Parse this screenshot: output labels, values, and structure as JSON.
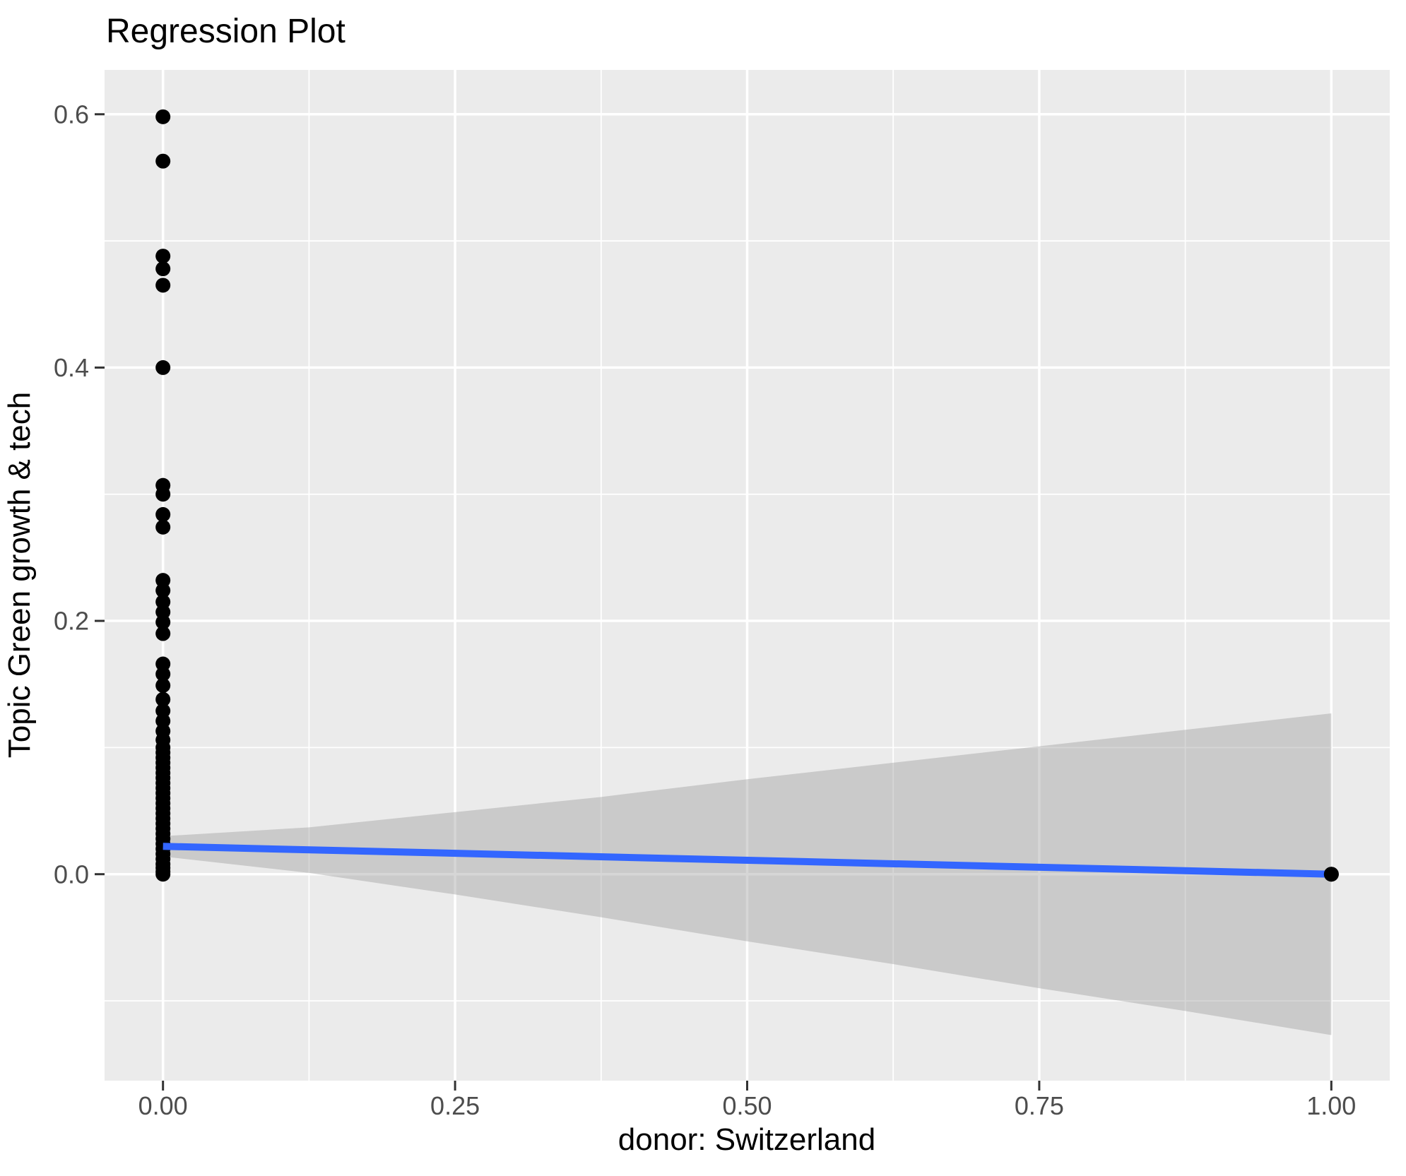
{
  "title": "Regression Plot",
  "axes": {
    "x": {
      "label": "donor: Switzerland",
      "tick_labels": [
        "0.00",
        "0.25",
        "0.50",
        "0.75",
        "1.00"
      ],
      "tick_values": [
        0,
        0.25,
        0.5,
        0.75,
        1.0
      ],
      "minor_tick_values": [
        0.125,
        0.375,
        0.625,
        0.875
      ],
      "range": [
        -0.05,
        1.05
      ]
    },
    "y": {
      "label": "Topic Green growth & tech",
      "tick_labels": [
        "0.0",
        "0.2",
        "0.4",
        "0.6"
      ],
      "tick_values": [
        0,
        0.2,
        0.4,
        0.6
      ],
      "minor_tick_values": [
        -0.1,
        0.1,
        0.3,
        0.5
      ],
      "range": [
        -0.163,
        0.635
      ]
    }
  },
  "colors": {
    "page_background": "#ffffff",
    "panel_background": "#ebebeb",
    "grid_major": "#ffffff",
    "grid_minor": "#ffffff",
    "point": "#000000",
    "regression_line": "#3366ff",
    "confidence_band": "#999999",
    "confidence_band_opacity": 0.4,
    "tick_mark": "#333333",
    "tick_label": "#4d4d4d",
    "title_text": "#000000"
  },
  "chart_data": {
    "type": "scatter",
    "title": "Regression Plot",
    "xlabel": "donor: Switzerland",
    "ylabel": "Topic Green growth & tech",
    "xlim": [
      -0.05,
      1.05
    ],
    "ylim": [
      -0.163,
      0.635
    ],
    "grid": "on",
    "legend": "none",
    "series": [
      {
        "name": "observations",
        "type": "scatter",
        "color": "#000000",
        "point_radius": 10.5,
        "points": [
          [
            0,
            0.598
          ],
          [
            0,
            0.563
          ],
          [
            0,
            0.488
          ],
          [
            0,
            0.478
          ],
          [
            0,
            0.465
          ],
          [
            0,
            0.4
          ],
          [
            0,
            0.307
          ],
          [
            0,
            0.3
          ],
          [
            0,
            0.284
          ],
          [
            0,
            0.274
          ],
          [
            0,
            0.232
          ],
          [
            0,
            0.224
          ],
          [
            0,
            0.215
          ],
          [
            0,
            0.207
          ],
          [
            0,
            0.199
          ],
          [
            0,
            0.19
          ],
          [
            0,
            0.166
          ],
          [
            0,
            0.158
          ],
          [
            0,
            0.149
          ],
          [
            0,
            0.138
          ],
          [
            0,
            0.129
          ],
          [
            0,
            0.121
          ],
          [
            0,
            0.113
          ],
          [
            0,
            0.106
          ],
          [
            0,
            0.1
          ],
          [
            0,
            0.096
          ],
          [
            0,
            0.092
          ],
          [
            0,
            0.088
          ],
          [
            0,
            0.084
          ],
          [
            0,
            0.08
          ],
          [
            0,
            0.076
          ],
          [
            0,
            0.072
          ],
          [
            0,
            0.068
          ],
          [
            0,
            0.064
          ],
          [
            0,
            0.06
          ],
          [
            0,
            0.056
          ],
          [
            0,
            0.052
          ],
          [
            0,
            0.048
          ],
          [
            0,
            0.044
          ],
          [
            0,
            0.04
          ],
          [
            0,
            0.036
          ],
          [
            0,
            0.032
          ],
          [
            0,
            0.028
          ],
          [
            0,
            0.024
          ],
          [
            0,
            0.02
          ],
          [
            0,
            0.016
          ],
          [
            0,
            0.012
          ],
          [
            0,
            0.008
          ],
          [
            0,
            0.005
          ],
          [
            0,
            0.002
          ],
          [
            0,
            0.0
          ],
          [
            1,
            0.0
          ]
        ]
      },
      {
        "name": "confidence-band",
        "type": "area",
        "color": "#999999",
        "opacity": 0.4,
        "upper": [
          [
            0,
            0.03
          ],
          [
            0.125,
            0.037
          ],
          [
            0.25,
            0.049
          ],
          [
            0.375,
            0.061
          ],
          [
            0.5,
            0.075
          ],
          [
            0.625,
            0.088
          ],
          [
            0.75,
            0.101
          ],
          [
            0.875,
            0.114
          ],
          [
            1,
            0.127
          ]
        ],
        "lower": [
          [
            0,
            0.014
          ],
          [
            0.125,
            0.001
          ],
          [
            0.25,
            -0.016
          ],
          [
            0.375,
            -0.034
          ],
          [
            0.5,
            -0.053
          ],
          [
            0.625,
            -0.071
          ],
          [
            0.75,
            -0.09
          ],
          [
            0.875,
            -0.108
          ],
          [
            1,
            -0.127
          ]
        ]
      },
      {
        "name": "regression-line",
        "type": "line",
        "color": "#3366ff",
        "width": 10,
        "points": [
          [
            0,
            0.022
          ],
          [
            1,
            0.0
          ]
        ]
      }
    ]
  }
}
